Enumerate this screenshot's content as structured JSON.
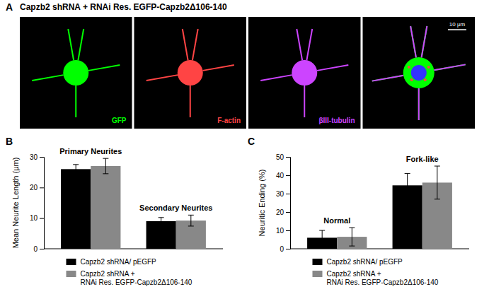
{
  "chart_data": [
    {
      "type": "image",
      "title": "Capzb2 shRNA + RNAi Res. EGFP-Capzb2Δ106-140",
      "categories": [
        "GFP",
        "F-actin",
        "βIII-tubulin"
      ],
      "colors": [
        "#00ff00",
        "#ff4444",
        "#cc44ff"
      ],
      "annotations": [
        "A",
        "10 μm"
      ]
    },
    {
      "type": "bar",
      "annotations": [
        "B"
      ],
      "categories": [
        "Primary Neurites",
        "Secondary Neurites"
      ],
      "ylabel": "Mean Neurite Length (µm)",
      "ylim": [
        0,
        30
      ],
      "yticks": [
        0,
        10,
        20,
        30
      ],
      "tick_labels": "y",
      "grid": false,
      "legend": "bottom",
      "series": [
        {
          "name": "Capzb2 shRNA/ pEGFP",
          "color": "#000000",
          "values": [
            26.0,
            9.0
          ],
          "errors": [
            1.5,
            1.2
          ]
        },
        {
          "name": "Capzb2 shRNA +\nRNAi Res. EGFP-Capzb2Δ106-140",
          "color": "#888888",
          "values": [
            27.0,
            9.2
          ],
          "errors": [
            2.5,
            1.8
          ]
        }
      ]
    },
    {
      "type": "bar",
      "annotations": [
        "C"
      ],
      "categories": [
        "Normal",
        "Fork-like"
      ],
      "ylabel": "Neuritic Ending (%)",
      "ylim": [
        0,
        50
      ],
      "yticks": [
        0,
        10,
        20,
        30,
        40,
        50
      ],
      "tick_labels": "y",
      "grid": false,
      "legend": "bottom",
      "series": [
        {
          "name": "Capzb2 shRNA/ pEGFP",
          "color": "#000000",
          "values": [
            6.0,
            34.5
          ],
          "errors": [
            4.0,
            6.5
          ]
        },
        {
          "name": "Capzb2 shRNA +\nRNAi Res. EGFP-Capzb2Δ106-140",
          "color": "#888888",
          "values": [
            6.5,
            36.0
          ],
          "errors": [
            5.0,
            9.0
          ]
        }
      ]
    }
  ]
}
